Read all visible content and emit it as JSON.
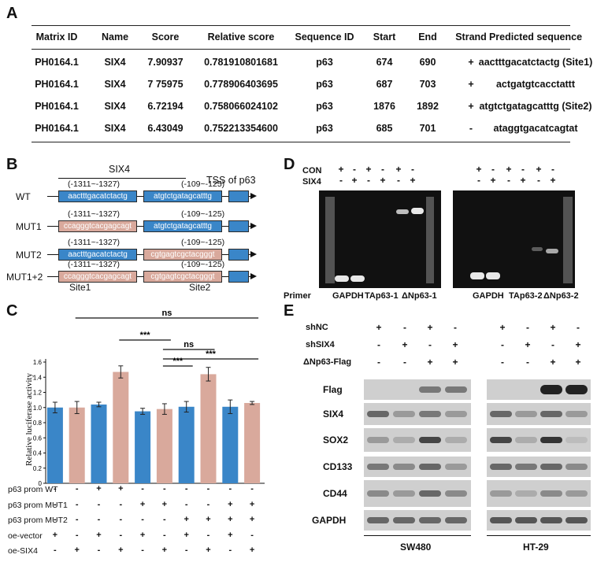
{
  "panels": {
    "a": "A",
    "b": "B",
    "c": "C",
    "d": "D",
    "e": "E"
  },
  "table": {
    "headers": [
      "Matrix ID",
      "Name",
      "Score",
      "Relative score",
      "Sequence ID",
      "Start",
      "End",
      "Strand",
      "Predicted sequence"
    ],
    "rows": [
      [
        "PH0164.1",
        "SIX4",
        "7.90937",
        "0.781910801681",
        "p63",
        "674",
        "690",
        "+",
        "aactttgacatctactg (Site1)"
      ],
      [
        "PH0164.1",
        "SIX4",
        "7 75975",
        "0.778906403695",
        "p63",
        "687",
        "703",
        "+",
        "actgatgtcacctattt"
      ],
      [
        "PH0164.1",
        "SIX4",
        "6.72194",
        "0.758066024102",
        "p63",
        "1876",
        "1892",
        "+",
        "atgtctgatagcatttg (Site2)"
      ],
      [
        "PH0164.1",
        "SIX4",
        "6.43049",
        "0.752213354600",
        "p63",
        "685",
        "701",
        "-",
        "ataggtgacatcagtat"
      ]
    ]
  },
  "panelB": {
    "six4_label": "SIX4",
    "tss_label": "TSS of p63",
    "rows": [
      {
        "name": "WT",
        "pos1": "(-1311~-1327)",
        "pos2": "(-109~-125)",
        "seq1": "aactttgacatctactg",
        "seq2": "atgtctgatagcatttg",
        "c1": "blue",
        "c2": "blue"
      },
      {
        "name": "MUT1",
        "pos1": "(-1311~-1327)",
        "pos2": "(-109~-125)",
        "seq1": "ccagggtcacgagcagt",
        "seq2": "atgtctgatagcatttg",
        "c1": "pink",
        "c2": "blue"
      },
      {
        "name": "MUT2",
        "pos1": "(-1311~-1327)",
        "pos2": "(-109~-125)",
        "seq1": "aactttgacatctactg",
        "seq2": "cgtgagtcgctacgggt",
        "c1": "blue",
        "c2": "pink"
      },
      {
        "name": "MUT1+2",
        "pos1": "(-1311~-1327)",
        "pos2": "(-109~-125)",
        "seq1": "ccagggtcacgagcagt",
        "seq2": "cgtgagtcgctacgggt",
        "c1": "pink",
        "c2": "pink"
      }
    ],
    "site1": "Site1",
    "site2": "Site2"
  },
  "chart_data": {
    "type": "bar",
    "ylabel": "Relative luciferase activity",
    "ylim": [
      0,
      1.6
    ],
    "yticks": [
      "0",
      "0.2",
      "0.4",
      "0.6",
      "0.8",
      "1.0",
      "1.2",
      "1.4",
      "1.6"
    ],
    "values": [
      1.0,
      1.0,
      1.04,
      1.47,
      0.95,
      0.98,
      1.01,
      1.44,
      1.01,
      1.06
    ],
    "errors": [
      0.07,
      0.08,
      0.03,
      0.08,
      0.04,
      0.07,
      0.07,
      0.09,
      0.09,
      0.02
    ],
    "colors": [
      "#3a86c8",
      "#d9a99c",
      "#3a86c8",
      "#d9a99c",
      "#3a86c8",
      "#d9a99c",
      "#3a86c8",
      "#d9a99c",
      "#3a86c8",
      "#d9a99c"
    ],
    "significance": [
      {
        "label": "ns"
      },
      {
        "label": "***"
      },
      {
        "label": "ns"
      },
      {
        "label": "***"
      },
      {
        "label": "***"
      }
    ],
    "conditions": [
      {
        "name": "p63 prom WT",
        "signs": [
          "-",
          "-",
          "+",
          "+",
          "-",
          "-",
          "-",
          "-",
          "-",
          "-"
        ]
      },
      {
        "name": "p63 prom MUT1",
        "signs": [
          "-",
          "-",
          "-",
          "-",
          "+",
          "+",
          "-",
          "-",
          "+",
          "+"
        ]
      },
      {
        "name": "p63 prom MUT2",
        "signs": [
          "-",
          "-",
          "-",
          "-",
          "-",
          "-",
          "+",
          "+",
          "+",
          "+"
        ]
      },
      {
        "name": "oe-vector",
        "signs": [
          "+",
          "-",
          "+",
          "-",
          "+",
          "-",
          "+",
          "-",
          "+",
          "-"
        ]
      },
      {
        "name": "oe-SIX4",
        "signs": [
          "-",
          "+",
          "-",
          "+",
          "-",
          "+",
          "-",
          "+",
          "-",
          "+"
        ]
      }
    ]
  },
  "panelD": {
    "con_label": "CON",
    "six4_label": "SIX4",
    "con_signs": [
      "+",
      "-",
      "+",
      "-",
      "+",
      "-"
    ],
    "six4_signs": [
      "-",
      "+",
      "-",
      "+",
      "-",
      "+"
    ],
    "primer_label": "Primer",
    "left_lanes": [
      "GAPDH",
      "TAp63-1",
      "ΔNp63-1"
    ],
    "right_lanes": [
      "GAPDH",
      "TAp63-2",
      "ΔNp63-2"
    ]
  },
  "panelE": {
    "conditions": [
      {
        "name": "shNC",
        "signs": [
          "+",
          "-",
          "+",
          "-"
        ]
      },
      {
        "name": "shSIX4",
        "signs": [
          "-",
          "+",
          "-",
          "+"
        ]
      },
      {
        "name": "ΔNp63-Flag",
        "signs": [
          "-",
          "-",
          "+",
          "+"
        ]
      }
    ],
    "blots": [
      "Flag",
      "SIX4",
      "SOX2",
      "CD133",
      "CD44",
      "GAPDH"
    ],
    "cells": [
      "SW480",
      "HT-29"
    ]
  }
}
